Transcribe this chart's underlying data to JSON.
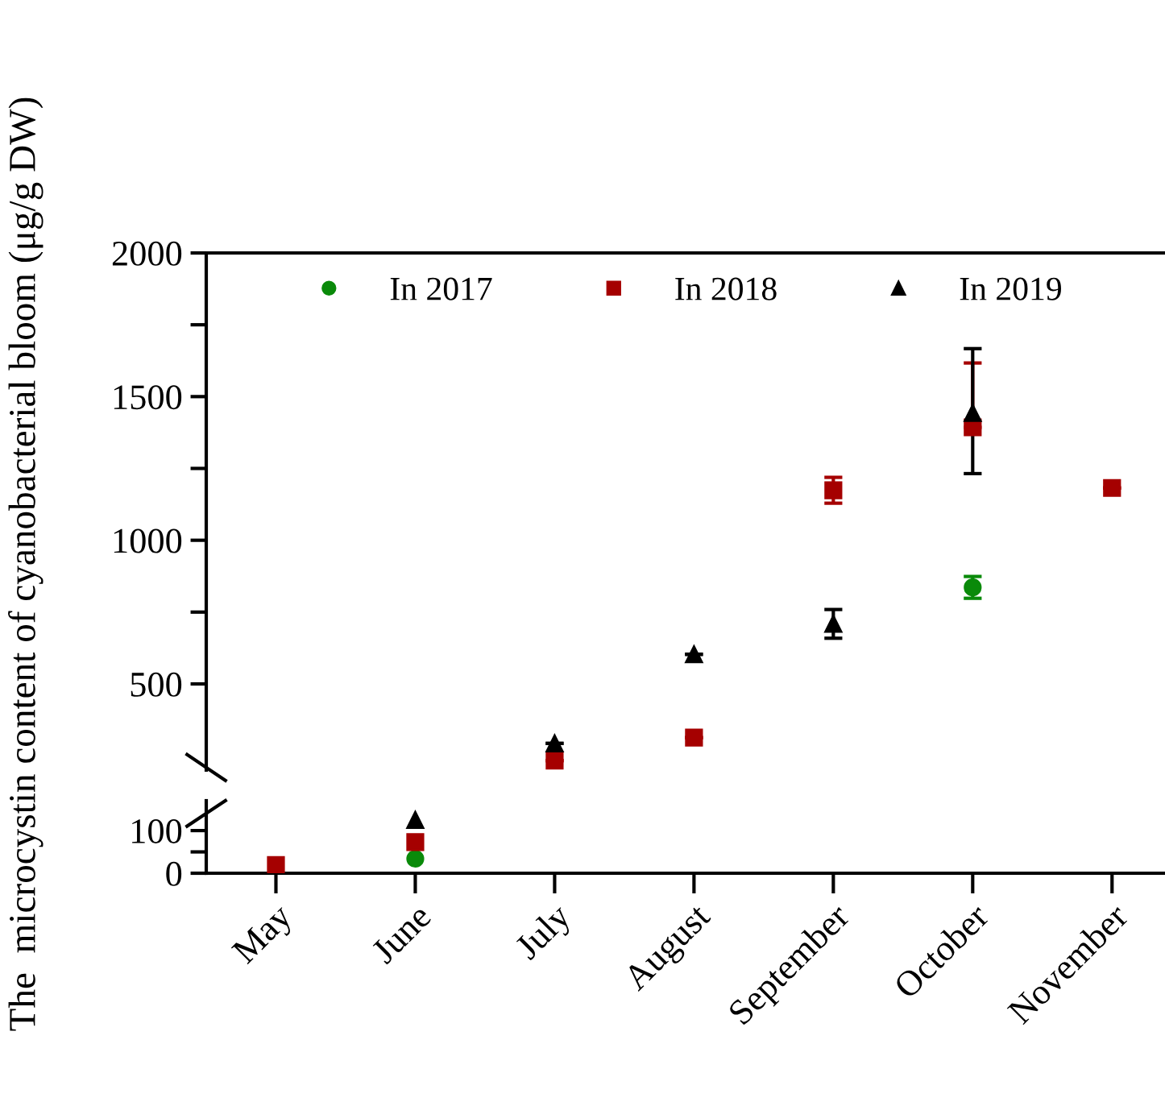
{
  "chart_data": [
    {
      "type": "scatter",
      "ylabel": "The  microcystin content of cyanobacterial bloom (μg/g DW)",
      "ylim": [
        200,
        2000
      ],
      "yticks": [
        500,
        {
          "value": 750,
          "label": null
        },
        1000,
        {
          "value": 1250,
          "label": null
        },
        1500,
        {
          "value": 1750,
          "label": null
        },
        2000
      ],
      "tick_labels": "y",
      "legend": "top",
      "grid": false,
      "series": [
        {
          "name": "In 2017",
          "color": "#0a8a0a",
          "marker": "circle",
          "values": [
            null,
            null,
            null,
            null,
            null,
            836,
            null
          ],
          "errors": [
            null,
            null,
            null,
            null,
            null,
            38,
            null
          ]
        },
        {
          "name": "In 2018",
          "color": "#a50000",
          "marker": "square",
          "values": [
            null,
            null,
            233,
            313,
            1174,
            1393,
            1182
          ],
          "errors": [
            null,
            null,
            null,
            null,
            45,
            [
              1393,
              1617
            ],
            null
          ]
        },
        {
          "name": "In 2019",
          "color": "#000000",
          "marker": "triangle",
          "values": [
            null,
            null,
            293,
            603,
            709,
            1443,
            null
          ],
          "errors": [
            null,
            null,
            null,
            null,
            50,
            [
              1232,
              1667
            ],
            null
          ]
        }
      ]
    },
    {
      "type": "scatter",
      "categories": [
        "May",
        "June",
        "July",
        "August",
        "September",
        "October",
        "November"
      ],
      "ylim": [
        0,
        170
      ],
      "yticks": [
        0,
        {
          "value": 50,
          "label": null
        },
        100
      ],
      "grid": false,
      "series": [
        {
          "color": "#0a8a0a",
          "marker": "circle",
          "values": [
            null,
            34,
            null,
            null,
            null,
            null,
            null
          ]
        },
        {
          "color": "#a50000",
          "marker": "square",
          "values": [
            19,
            73,
            null,
            null,
            null,
            null,
            null
          ]
        },
        {
          "color": "#000000",
          "marker": "triangle",
          "values": [
            null,
            125,
            null,
            null,
            null,
            null,
            null
          ]
        }
      ]
    }
  ]
}
